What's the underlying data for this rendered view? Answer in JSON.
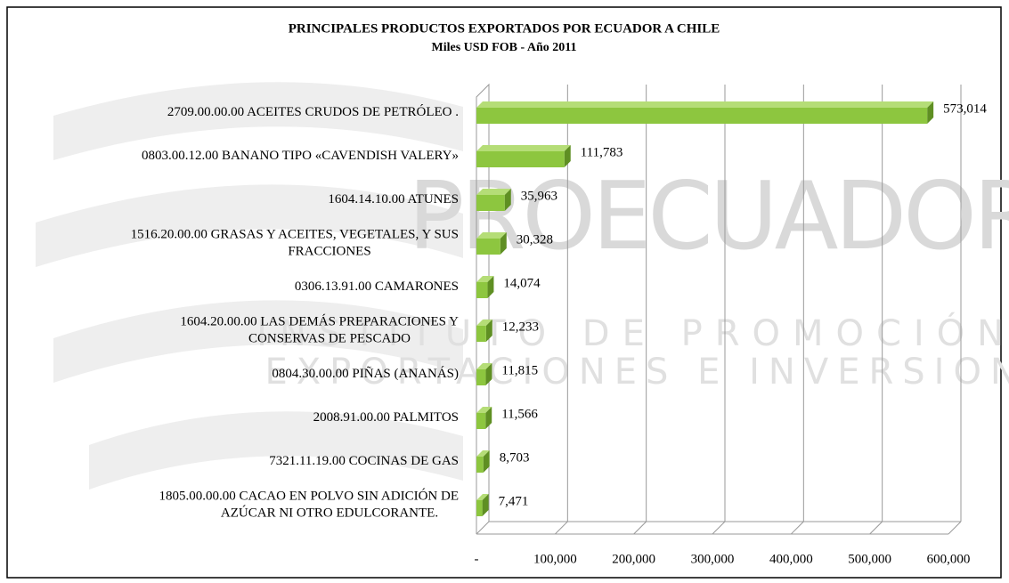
{
  "chart_data": {
    "type": "bar3d_horizontal",
    "title": "PRINCIPALES PRODUCTOS  EXPORTADOS  POR ECUADOR A CHILE",
    "subtitle": "Miles USD FOB  - Año 2011",
    "watermark": [
      "PROECUADOR",
      "INSTITUTO DE PROMOCIÓN DE",
      "EXPORTACIONES E INVERSIONES"
    ],
    "categories": [
      "2709.00.00.00  ACEITES CRUDOS DE PETRÓLEO .",
      "0803.00.12.00  BANANO TIPO «CAVENDISH VALERY»",
      "1604.14.10.00  ATUNES",
      "1516.20.00.00  GRASAS Y ACEITES, VEGETALES, Y SUS\nFRACCIONES",
      "0306.13.91.00  CAMARONES",
      "1604.20.00.00  LAS DEMÁS PREPARACIONES  Y\nCONSERVAS DE PESCADO",
      "0804.30.00.00  PIÑAS (ANANÁS)",
      "2008.91.00.00  PALMITOS",
      "7321.11.19.00 COCINAS DE GAS",
      "1805.00.00.00  CACAO EN POLVO SIN ADICIÓN DE\nAZÚCAR NI OTRO EDULCORANTE."
    ],
    "values": [
      573014,
      111783,
      35963,
      30328,
      14074,
      12233,
      11815,
      11566,
      8703,
      7471
    ],
    "value_labels": [
      "573,014",
      "111,783",
      "35,963",
      "30,328",
      "14,074",
      "12,233",
      "11,815",
      "11,566",
      "8,703",
      "7,471"
    ],
    "color": "#8dc63f",
    "xlim": [
      0,
      600000
    ],
    "xticks": [
      {
        "value": 0,
        "label": "-"
      },
      {
        "value": 100000,
        "label": "100,000"
      },
      {
        "value": 200000,
        "label": "200,000"
      },
      {
        "value": 300000,
        "label": "300,000"
      },
      {
        "value": 400000,
        "label": "400,000"
      },
      {
        "value": 500000,
        "label": "500,000"
      },
      {
        "value": 600000,
        "label": "600,000"
      }
    ],
    "grid": true
  }
}
